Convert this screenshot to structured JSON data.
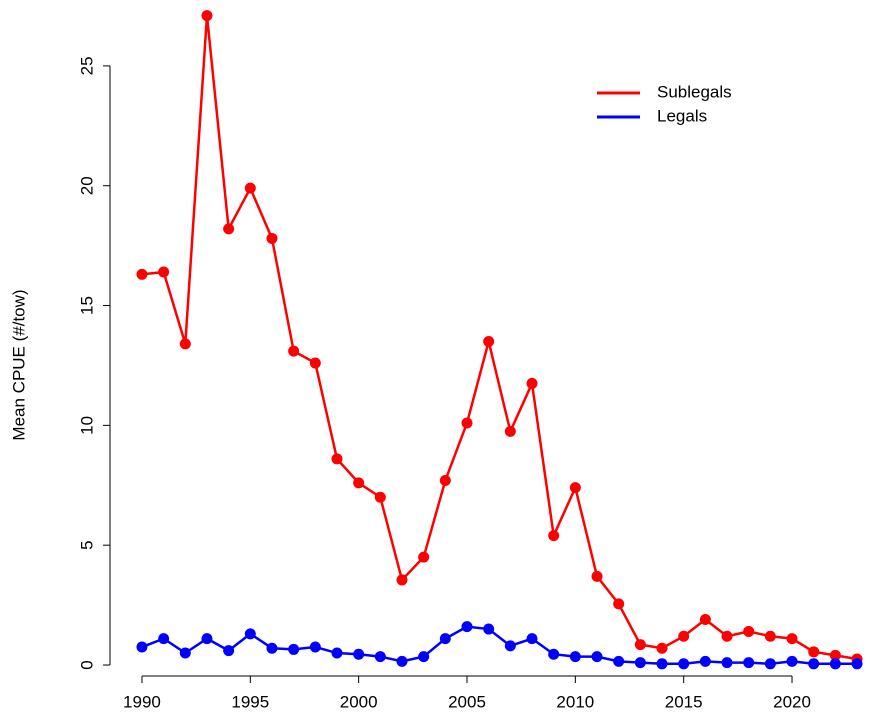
{
  "chart_data": {
    "type": "line",
    "y_label": "Mean CPUE (#/tow)",
    "x": [
      1990,
      1991,
      1992,
      1993,
      1994,
      1995,
      1996,
      1997,
      1998,
      1999,
      2000,
      2001,
      2002,
      2003,
      2004,
      2005,
      2006,
      2007,
      2008,
      2009,
      2010,
      2011,
      2012,
      2013,
      2014,
      2015,
      2016,
      2017,
      2018,
      2019,
      2020,
      2021,
      2022,
      2023
    ],
    "series": [
      {
        "name": "Sublegals",
        "color": "#ff0000",
        "values": [
          16.3,
          16.4,
          13.4,
          27.1,
          18.2,
          19.9,
          17.8,
          13.1,
          12.6,
          8.6,
          7.6,
          7.0,
          3.55,
          4.5,
          7.7,
          10.1,
          13.5,
          9.75,
          11.75,
          5.4,
          7.4,
          3.7,
          2.55,
          0.85,
          0.7,
          1.2,
          1.9,
          1.2,
          1.4,
          1.2,
          1.1,
          0.55,
          0.4,
          0.25
        ]
      },
      {
        "name": "Legals",
        "color": "#0000ff",
        "values": [
          0.75,
          1.1,
          0.5,
          1.1,
          0.6,
          1.3,
          0.7,
          0.65,
          0.75,
          0.5,
          0.45,
          0.35,
          0.15,
          0.35,
          1.1,
          1.6,
          1.5,
          0.8,
          1.1,
          0.45,
          0.35,
          0.35,
          0.15,
          0.1,
          0.05,
          0.05,
          0.15,
          0.1,
          0.1,
          0.05,
          0.15,
          0.05,
          0.05,
          0.05
        ]
      }
    ],
    "xlim": [
      1989,
      2024
    ],
    "xticks": [
      1990,
      1995,
      2000,
      2005,
      2010,
      2015,
      2020
    ],
    "ylim": [
      0,
      27.5
    ],
    "yticks": [
      0,
      5,
      10,
      15,
      20,
      25
    ],
    "legend": "top-right",
    "grid": false
  }
}
